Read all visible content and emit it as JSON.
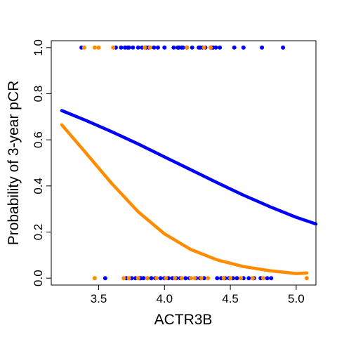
{
  "chart_data": {
    "type": "scatter",
    "title": "",
    "xlabel": "ACTR3B",
    "ylabel": "Probability of 3-year pCR",
    "xlim": [
      3.14,
      5.15
    ],
    "ylim": [
      -0.03,
      1.03
    ],
    "xticks": [
      "3.5",
      "4.0",
      "4.5",
      "5.0"
    ],
    "yticks": [
      "0.0",
      "0.2",
      "0.4",
      "0.6",
      "0.8",
      "1.0"
    ],
    "grid": false,
    "legend": "none",
    "series": [
      {
        "kind": "points",
        "color": "#0000ff",
        "y": 1,
        "x": [
          3.37,
          3.63,
          3.67,
          3.7,
          3.72,
          3.73,
          3.76,
          3.8,
          3.83,
          3.86,
          3.88,
          3.92,
          3.95,
          4.0,
          4.07,
          4.1,
          4.11,
          4.13,
          4.14,
          4.17,
          4.21,
          4.26,
          4.27,
          4.29,
          4.31,
          4.35,
          4.36,
          4.37,
          4.39,
          4.42,
          4.53,
          4.6,
          4.74,
          4.9
        ]
      },
      {
        "kind": "points",
        "color": "#ff8c00",
        "y": 1,
        "x": [
          3.39,
          3.47,
          3.5,
          3.61,
          3.85,
          3.89,
          4.17,
          4.3,
          4.35
        ]
      },
      {
        "kind": "points",
        "color": "#0000ff",
        "y": 0,
        "x": [
          3.55,
          3.71,
          3.75,
          3.78,
          3.81,
          3.82,
          3.84,
          3.87,
          3.9,
          3.93,
          3.97,
          4.0,
          4.03,
          4.06,
          4.09,
          4.12,
          4.16,
          4.19,
          4.24,
          4.27,
          4.3,
          4.4,
          4.43,
          4.46,
          4.49,
          4.52,
          4.55,
          4.6,
          4.64,
          4.68,
          4.73,
          4.78,
          4.81
        ]
      },
      {
        "kind": "points",
        "color": "#ff8c00",
        "y": 0,
        "x": [
          3.47,
          3.69,
          3.73,
          3.8,
          3.87,
          3.94,
          4.01,
          4.08,
          4.13,
          4.2,
          4.23,
          4.28,
          4.33,
          4.45,
          4.5,
          4.58,
          4.67,
          4.75,
          5.08
        ]
      },
      {
        "kind": "curve",
        "color": "#0000ff",
        "x": [
          3.22,
          3.4,
          3.6,
          3.8,
          4.0,
          4.2,
          4.4,
          4.6,
          4.8,
          5.0,
          5.15
        ],
        "y": [
          0.727,
          0.685,
          0.635,
          0.582,
          0.526,
          0.47,
          0.414,
          0.36,
          0.31,
          0.264,
          0.235
        ]
      },
      {
        "kind": "curve",
        "color": "#ff8c00",
        "x": [
          3.22,
          3.4,
          3.6,
          3.8,
          4.0,
          4.2,
          4.4,
          4.6,
          4.8,
          5.0,
          5.08
        ],
        "y": [
          0.665,
          0.545,
          0.41,
          0.288,
          0.192,
          0.124,
          0.079,
          0.05,
          0.032,
          0.02,
          0.022
        ]
      }
    ]
  }
}
